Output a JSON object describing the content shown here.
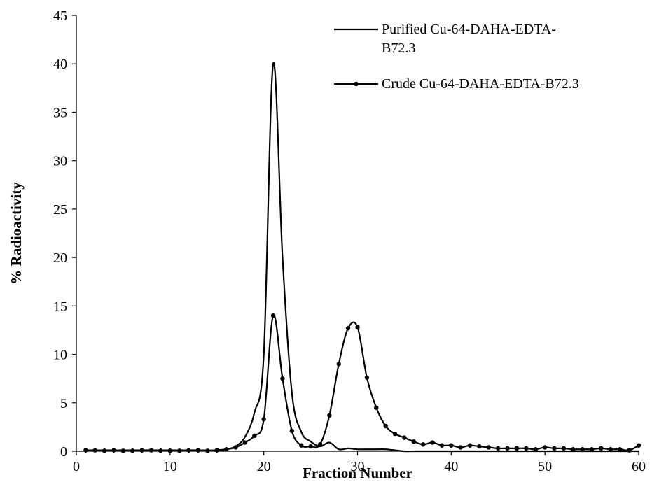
{
  "chart_data": {
    "type": "line",
    "title": "",
    "xlabel": "Fraction Number",
    "ylabel": "% Radioactivity",
    "xlim": [
      0,
      60
    ],
    "ylim": [
      0,
      45
    ],
    "xticks": [
      0,
      10,
      20,
      30,
      40,
      50,
      60
    ],
    "yticks": [
      0,
      5,
      10,
      15,
      20,
      25,
      30,
      35,
      40,
      45
    ],
    "grid": false,
    "legend_position": "top-right",
    "series": [
      {
        "name": "Purified Cu-64-DAHA-EDTA-B72.3",
        "legend_lines": [
          "Purified Cu-64-DAHA-EDTA-",
          "B72.3"
        ],
        "marker": "none",
        "color": "#000000",
        "x": [
          1,
          2,
          3,
          4,
          5,
          6,
          7,
          8,
          9,
          10,
          11,
          12,
          13,
          14,
          15,
          16,
          17,
          18,
          19,
          20,
          21,
          22,
          23,
          24,
          25,
          26,
          27,
          28,
          29,
          30,
          31,
          32,
          33,
          34,
          35,
          36,
          37,
          38,
          39,
          40,
          41,
          42,
          43,
          44,
          45,
          46,
          47,
          48,
          49,
          50,
          51,
          52,
          53,
          54,
          55,
          56,
          57,
          58,
          59,
          60
        ],
        "values": [
          0.1,
          0.1,
          0.1,
          0.1,
          0.1,
          0.1,
          0.1,
          0.1,
          0.1,
          0.1,
          0.1,
          0.1,
          0.1,
          0.1,
          0.1,
          0.2,
          0.5,
          1.5,
          4.0,
          10.0,
          40.0,
          20.0,
          6.0,
          2.0,
          1.0,
          0.5,
          0.9,
          0.2,
          0.3,
          0.2,
          0.2,
          0.2,
          0.2,
          0.1,
          0.0,
          0.0,
          0.0,
          0.0,
          0.0,
          0.0,
          0.0,
          0.0,
          0.0,
          0.0,
          0.0,
          0.0,
          0.0,
          0.0,
          0.0,
          0.0,
          0.0,
          0.0,
          0.0,
          0.0,
          0.0,
          0.0,
          0.0,
          0.0,
          0.0,
          0.0
        ]
      },
      {
        "name": "Crude Cu-64-DAHA-EDTA-B72.3",
        "legend_lines": [
          "Crude Cu-64-DAHA-EDTA-B72.3"
        ],
        "marker": "circle",
        "color": "#000000",
        "x": [
          1,
          2,
          3,
          4,
          5,
          6,
          7,
          8,
          9,
          10,
          11,
          12,
          13,
          14,
          15,
          16,
          17,
          18,
          19,
          20,
          21,
          22,
          23,
          24,
          25,
          26,
          27,
          28,
          29,
          30,
          31,
          32,
          33,
          34,
          35,
          36,
          37,
          38,
          39,
          40,
          41,
          42,
          43,
          44,
          45,
          46,
          47,
          48,
          49,
          50,
          51,
          52,
          53,
          54,
          55,
          56,
          57,
          58,
          59,
          60
        ],
        "values": [
          0.1,
          0.1,
          0.05,
          0.1,
          0.05,
          0.05,
          0.1,
          0.1,
          0.05,
          0.05,
          0.05,
          0.1,
          0.1,
          0.05,
          0.1,
          0.2,
          0.4,
          0.9,
          1.6,
          3.3,
          14.0,
          7.5,
          2.1,
          0.6,
          0.5,
          0.7,
          3.7,
          9.0,
          12.7,
          12.8,
          7.6,
          4.5,
          2.6,
          1.8,
          1.4,
          1.0,
          0.7,
          0.9,
          0.6,
          0.6,
          0.4,
          0.6,
          0.5,
          0.4,
          0.3,
          0.3,
          0.3,
          0.3,
          0.2,
          0.4,
          0.3,
          0.3,
          0.2,
          0.2,
          0.2,
          0.3,
          0.2,
          0.2,
          0.1,
          0.6
        ]
      }
    ]
  }
}
